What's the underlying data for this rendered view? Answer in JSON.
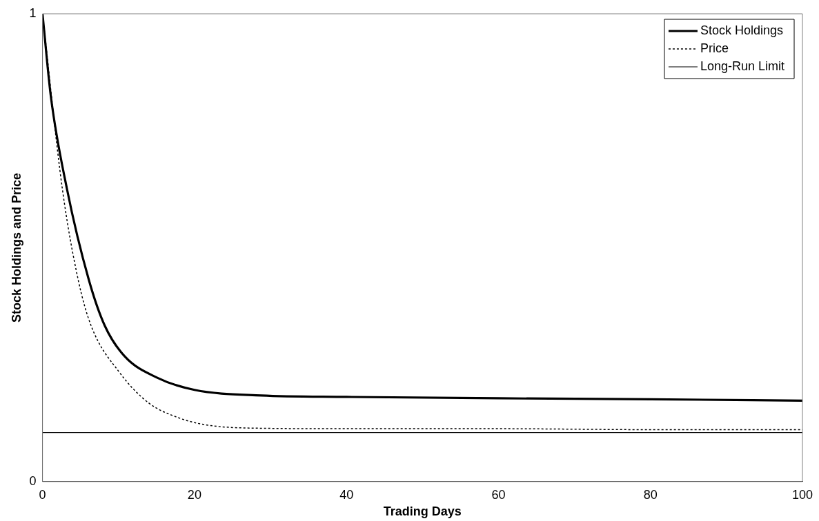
{
  "chart_data": {
    "type": "line",
    "xlabel": "Trading Days",
    "ylabel": "Stock Holdings and Price",
    "xlim": [
      0,
      100
    ],
    "xticks": [
      0,
      20,
      40,
      60,
      80,
      100
    ],
    "ylim": [
      0,
      1
    ],
    "yticks": [
      0,
      1
    ],
    "grid": false,
    "legend": "top right",
    "marker": "none",
    "series": [
      {
        "name": "Stock Holdings",
        "color": "#000000",
        "line_style": "solid",
        "x": [
          0,
          1.1,
          3.2,
          6.1,
          8.2,
          10.8,
          15.1,
          20,
          28.8,
          40,
          60,
          80,
          100
        ],
        "values": [
          1,
          0.823,
          0.627,
          0.431,
          0.333,
          0.268,
          0.222,
          0.196,
          0.184,
          0.181,
          0.178,
          0.176,
          0.173
        ]
      },
      {
        "name": "Price",
        "color": "#000000",
        "line_style": "dotted",
        "x": [
          0,
          2.6,
          4.7,
          6.4,
          10.1,
          13.9,
          17.8,
          21.6,
          28.8,
          40,
          60,
          80,
          100
        ],
        "values": [
          1,
          0.627,
          0.431,
          0.333,
          0.234,
          0.169,
          0.137,
          0.121,
          0.114,
          0.113,
          0.113,
          0.111,
          0.111
        ]
      },
      {
        "name": "Long-Run Limit",
        "color": "#000000",
        "line_style": "solid",
        "x": [
          0,
          100
        ],
        "values": [
          0.105,
          0.105
        ]
      }
    ]
  }
}
